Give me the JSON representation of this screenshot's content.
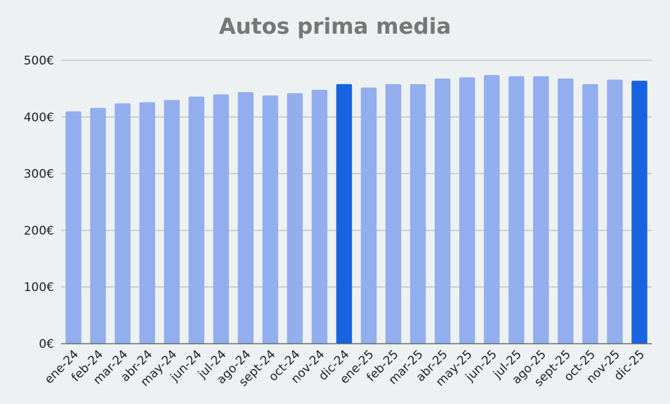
{
  "chart_data": {
    "type": "bar",
    "title": "Autos prima media",
    "xlabel": "",
    "ylabel": "",
    "ylim": [
      0,
      500
    ],
    "yticks": [
      0,
      100,
      200,
      300,
      400,
      500
    ],
    "ytick_labels": [
      "0€",
      "100€",
      "200€",
      "300€",
      "400€",
      "500€"
    ],
    "grid": true,
    "legend": "none",
    "categories": [
      "ene-24",
      "feb-24",
      "mar-24",
      "abr-24",
      "may-24",
      "jun-24",
      "jul-24",
      "ago-24",
      "sept-24",
      "oct-24",
      "nov-24",
      "dic-24",
      "ene-25",
      "feb-25",
      "mar-25",
      "abr-25",
      "may-25",
      "jun-25",
      "jul-25",
      "ago-25",
      "sept-25",
      "oct-25",
      "nov-25",
      "dic-25"
    ],
    "values": [
      410,
      416,
      424,
      426,
      430,
      436,
      440,
      444,
      438,
      442,
      448,
      458,
      452,
      458,
      458,
      468,
      470,
      474,
      472,
      472,
      468,
      458,
      466,
      464
    ],
    "highlighted": [
      "dic-24",
      "dic-25"
    ],
    "colors": {
      "bar": "#92aeee",
      "highlight": "#1864e0",
      "grid": "#c4c7c9",
      "title": "#777777",
      "background": "#eef1f2"
    }
  }
}
